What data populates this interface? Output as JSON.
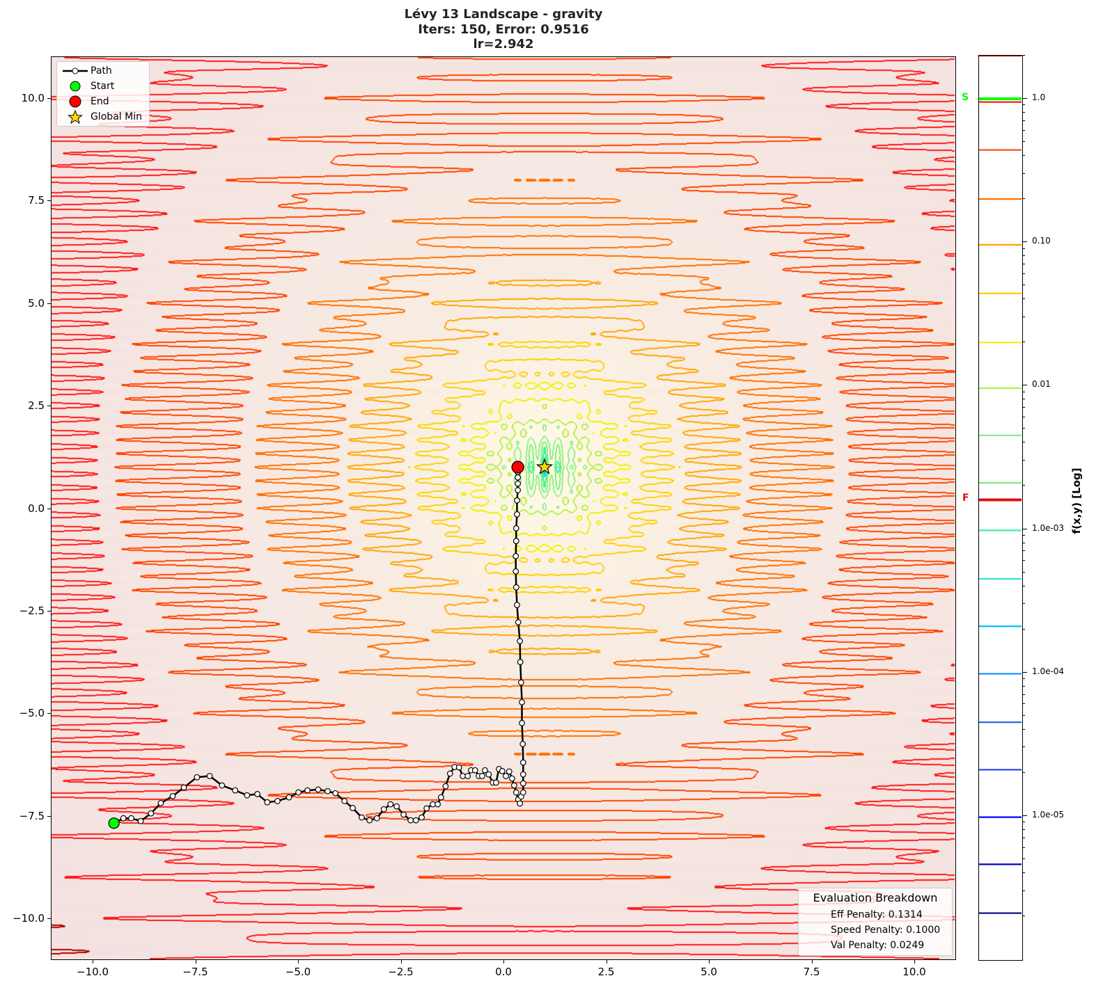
{
  "title": {
    "line1": "Lévy 13 Landscape - gravity",
    "line2": "Iters: 150, Error: 0.9516",
    "line3": "lr=2.942"
  },
  "chart_data": {
    "type": "contour",
    "function": "Lévy 13",
    "xlim": [
      -11,
      11
    ],
    "ylim": [
      -11,
      11
    ],
    "x_ticks": [
      -10.0,
      -7.5,
      -5.0,
      -2.5,
      0.0,
      2.5,
      5.0,
      7.5,
      10.0
    ],
    "x_tick_labels": [
      "−10.0",
      "−7.5",
      "−5.0",
      "−2.5",
      "0.0",
      "2.5",
      "5.0",
      "7.5",
      "10.0"
    ],
    "y_ticks": [
      10.0,
      7.5,
      5.0,
      2.5,
      0.0,
      -2.5,
      -5.0,
      -7.5,
      -10.0
    ],
    "y_tick_labels": [
      "10.0",
      "7.5",
      "5.0",
      "2.5",
      "0.0",
      "−2.5",
      "−5.0",
      "−7.5",
      "−10.0"
    ],
    "grid": false,
    "legend_placement": "top-left",
    "legend": [
      "Path",
      "Start",
      "End",
      "Global Min"
    ],
    "contour_levels": [
      {
        "value": 2.1e-06,
        "color": "#00008b"
      },
      {
        "value": 4.6e-06,
        "color": "#0000cd"
      },
      {
        "value": 9.8e-06,
        "color": "#0000ff"
      },
      {
        "value": 2.1e-05,
        "color": "#2040e8"
      },
      {
        "value": 4.5e-05,
        "color": "#1e60e8"
      },
      {
        "value": 9.8e-05,
        "color": "#1e90ff"
      },
      {
        "value": 0.00021,
        "color": "#00bfff"
      },
      {
        "value": 0.00045,
        "color": "#30e8d0"
      },
      {
        "value": 0.00098,
        "color": "#40f0a0"
      },
      {
        "value": 0.0021,
        "color": "#7cf07c"
      },
      {
        "value": 0.0045,
        "color": "#90ee90"
      },
      {
        "value": 0.0096,
        "color": "#b0f040"
      },
      {
        "value": 0.02,
        "color": "#f0f000"
      },
      {
        "value": 0.044,
        "color": "#ffd000"
      },
      {
        "value": 0.096,
        "color": "#ffa500"
      },
      {
        "value": 0.2,
        "color": "#ff7000"
      },
      {
        "value": 0.44,
        "color": "#ff4500"
      },
      {
        "value": 0.95,
        "color": "#ff1a1a"
      },
      {
        "value": 2.0,
        "color": "#b00000"
      }
    ],
    "path": {
      "x": [
        -9.48,
        -9.25,
        -9.06,
        -8.83,
        -8.58,
        -8.34,
        -8.05,
        -7.78,
        -7.46,
        -7.15,
        -6.85,
        -6.53,
        -6.24,
        -5.99,
        -5.75,
        -5.5,
        -5.22,
        -4.99,
        -4.77,
        -4.51,
        -4.28,
        -4.09,
        -3.87,
        -3.67,
        -3.45,
        -3.26,
        -3.08,
        -2.91,
        -2.75,
        -2.6,
        -2.43,
        -2.26,
        -2.13,
        -1.99,
        -1.87,
        -1.72,
        -1.6,
        -1.52,
        -1.41,
        -1.3,
        -1.19,
        -1.08,
        -0.99,
        -0.87,
        -0.79,
        -0.69,
        -0.6,
        -0.52,
        -0.45,
        -0.36,
        -0.26,
        -0.18,
        -0.11,
        -0.03,
        0.06,
        0.14,
        0.21,
        0.26,
        0.31,
        0.36,
        0.4,
        0.43,
        0.48,
        0.48,
        0.48,
        0.48,
        0.47,
        0.45,
        0.45,
        0.43,
        0.41,
        0.4,
        0.36,
        0.33,
        0.31,
        0.3,
        0.3,
        0.31,
        0.31,
        0.33,
        0.33,
        0.35,
        0.35,
        0.35,
        0.35,
        0.35
      ],
      "y": [
        -7.68,
        -7.56,
        -7.56,
        -7.63,
        -7.44,
        -7.19,
        -7.02,
        -6.81,
        -6.56,
        -6.53,
        -6.76,
        -6.88,
        -7.0,
        -6.97,
        -7.17,
        -7.14,
        -7.05,
        -6.93,
        -6.88,
        -6.86,
        -6.9,
        -6.95,
        -7.14,
        -7.31,
        -7.54,
        -7.61,
        -7.56,
        -7.34,
        -7.22,
        -7.27,
        -7.47,
        -7.61,
        -7.61,
        -7.54,
        -7.32,
        -7.22,
        -7.22,
        -7.05,
        -6.78,
        -6.47,
        -6.31,
        -6.32,
        -6.53,
        -6.53,
        -6.39,
        -6.39,
        -6.53,
        -6.53,
        -6.39,
        -6.49,
        -6.69,
        -6.69,
        -6.36,
        -6.41,
        -6.53,
        -6.42,
        -6.59,
        -6.76,
        -6.93,
        -7.1,
        -7.2,
        -7.03,
        -6.93,
        -6.71,
        -6.49,
        -6.2,
        -5.75,
        -5.24,
        -4.73,
        -4.25,
        -3.75,
        -3.24,
        -2.78,
        -2.36,
        -1.93,
        -1.54,
        -1.17,
        -0.8,
        -0.49,
        -0.15,
        0.19,
        0.44,
        0.6,
        0.75,
        0.88,
        1.0
      ]
    },
    "start": {
      "x": -9.48,
      "y": -7.68,
      "color": "#00ff00"
    },
    "end": {
      "x": 0.35,
      "y": 1.0,
      "color": "#ff0000"
    },
    "global_min": {
      "x": 1.0,
      "y": 1.0,
      "color": "#ffd700"
    },
    "colorbar": {
      "label": "f(x,y) [Log]",
      "scale": "log",
      "range": [
        1e-06,
        2.0
      ],
      "ticks": [
        1.0,
        0.1,
        0.01,
        0.001,
        0.0001,
        1e-05
      ],
      "tick_labels": [
        "1.0",
        "0.10",
        "0.01",
        "1.0e-03",
        "1.0e-04",
        "1.0e-05"
      ],
      "start_marker": {
        "label": "S",
        "value": 1.0,
        "color": "#00ff00"
      },
      "final_marker": {
        "label": "F",
        "value": 0.0016,
        "color": "#e01010"
      }
    },
    "evaluation": {
      "title": "Evaluation Breakdown",
      "rows": [
        "Eff Penalty: 0.1314",
        "Speed Penalty: 0.1000",
        "Val Penalty: 0.0249"
      ]
    }
  }
}
